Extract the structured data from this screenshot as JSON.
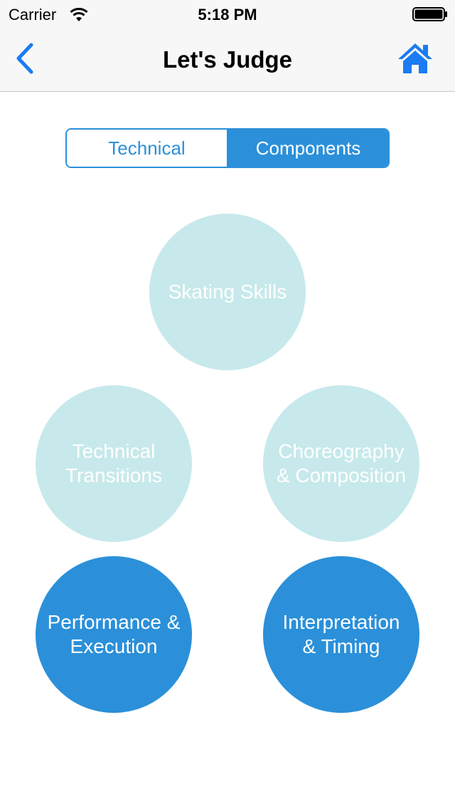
{
  "status_bar": {
    "carrier": "Carrier",
    "time": "5:18 PM",
    "wifi_icon": "wifi-icon",
    "battery_icon": "battery-icon"
  },
  "nav": {
    "title": "Let's Judge",
    "back_icon": "chevron-left-icon",
    "home_icon": "home-icon",
    "accent_color": "#1a7bf2"
  },
  "segments": {
    "items": [
      {
        "label": "Technical",
        "selected": false
      },
      {
        "label": "Components",
        "selected": true
      }
    ],
    "accent_color": "#2b90d9"
  },
  "components": {
    "light_color": "#c7e9eb",
    "dark_color": "#2b90d9",
    "items": [
      {
        "label": "Skating Skills",
        "state": "light"
      },
      {
        "label": "Technical\nTransitions",
        "state": "light"
      },
      {
        "label": "Choreography\n& Composition",
        "state": "light"
      },
      {
        "label": "Performance &\nExecution",
        "state": "dark"
      },
      {
        "label": "Interpretation\n& Timing",
        "state": "dark"
      }
    ]
  }
}
